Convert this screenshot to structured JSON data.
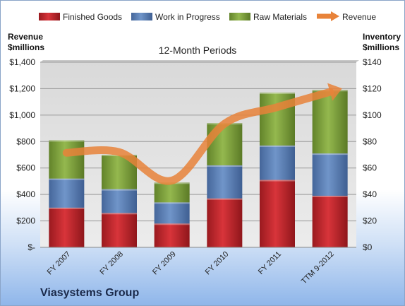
{
  "company": "Viasystems Group",
  "chart_data": {
    "type": "bar",
    "subtype": "stacked-bar-with-line",
    "title": "12-Month Periods",
    "categories": [
      "FY 2007",
      "FY 2008",
      "FY 2009",
      "FY 2010",
      "FY 2011",
      "TTM 9-2012"
    ],
    "left_axis": {
      "label_line1": "Revenue",
      "label_line2": "$millions",
      "ylim": [
        0,
        1400
      ],
      "ticks": [
        0,
        200,
        400,
        600,
        800,
        1000,
        1200,
        1400
      ],
      "tick_labels": [
        "$-",
        "$200",
        "$400",
        "$600",
        "$800",
        "$1,000",
        "$1,200",
        "$1,400"
      ]
    },
    "right_axis": {
      "label_line1": "Inventory",
      "label_line2": "$millions",
      "ylim": [
        0,
        140
      ],
      "ticks": [
        0,
        20,
        40,
        60,
        80,
        100,
        120,
        140
      ],
      "tick_labels": [
        "$0",
        "$20",
        "$40",
        "$60",
        "$80",
        "$100",
        "$120",
        "$140"
      ]
    },
    "series": [
      {
        "name": "Finished Goods",
        "axis": "right",
        "color": "#c0272d",
        "values": [
          30,
          26,
          18,
          37,
          51,
          39
        ]
      },
      {
        "name": "Work in Progress",
        "axis": "right",
        "color": "#5a7db5",
        "values": [
          22,
          18,
          16,
          25,
          26,
          32
        ]
      },
      {
        "name": "Raw Materials",
        "axis": "right",
        "color": "#7ea13c",
        "values": [
          29,
          26,
          15,
          32,
          40,
          48
        ]
      },
      {
        "name": "Revenue",
        "axis": "left",
        "type": "line",
        "color": "#e8833a",
        "values": [
          715,
          720,
          505,
          935,
          1060,
          1175
        ]
      }
    ],
    "legend_position": "top",
    "grid": true
  }
}
